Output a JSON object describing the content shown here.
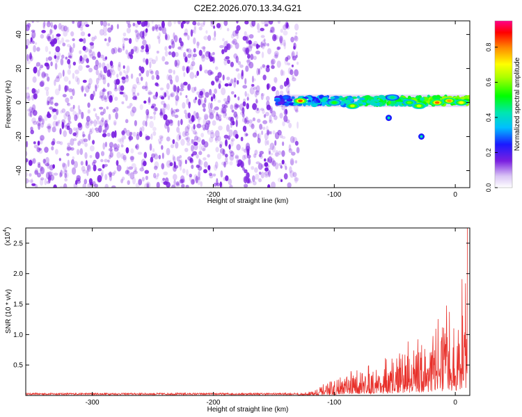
{
  "title": "C2E2.2026.070.13.34.G21",
  "chart_data": [
    {
      "type": "heatmap",
      "xlabel": "Height of straight line (km)",
      "ylabel": "Frequency (Hz)",
      "xlim": [
        -355,
        12
      ],
      "ylim": [
        -50,
        48
      ],
      "xticks": [
        -300,
        -200,
        -100,
        0
      ],
      "yticks": [
        -40,
        -20,
        0,
        20,
        40
      ],
      "colorbar": {
        "label": "Normalized spectral amplitude",
        "range": [
          0.0,
          0.95
        ],
        "ticks": [
          0.0,
          0.2,
          0.4,
          0.6,
          0.8
        ]
      },
      "noise_region": {
        "x_range": [
          -355,
          -130
        ],
        "color": "#7a1fe0"
      },
      "signal_band": {
        "x_range": [
          -148,
          12
        ],
        "center_freq": 1,
        "peaks": [
          {
            "x": -128,
            "y": 1,
            "amp": 0.92
          },
          {
            "x": -100,
            "y": 0,
            "amp": 0.55
          },
          {
            "x": -85,
            "y": -2,
            "amp": 0.7
          },
          {
            "x": -52,
            "y": 3,
            "amp": 0.45
          },
          {
            "x": -38,
            "y": 0,
            "amp": 0.6
          },
          {
            "x": -30,
            "y": -2,
            "amp": 0.7
          },
          {
            "x": -15,
            "y": 0,
            "amp": 0.9
          },
          {
            "x": -5,
            "y": 1,
            "amp": 0.85
          },
          {
            "x": 5,
            "y": 0,
            "amp": 0.75
          }
        ],
        "branch_points": [
          {
            "x": -55,
            "y": -9,
            "amp": 0.2
          },
          {
            "x": -28,
            "y": -20,
            "amp": 0.25
          }
        ]
      }
    },
    {
      "type": "line",
      "xlabel": "Height of straight line (km)",
      "ylabel": "SNR (10 * v/v)",
      "yscale_label": "(x10",
      "yscale_exp": "4",
      "yscale_close": ")",
      "xlim": [
        -355,
        12
      ],
      "ylim": [
        0,
        2.75
      ],
      "xticks": [
        -300,
        -200,
        -100,
        0
      ],
      "yticks": [
        0.5,
        1.0,
        1.5,
        2.0,
        2.5
      ],
      "ytick_labels": [
        "0.5",
        "1.0",
        "1.5",
        "2.0",
        "2.5"
      ],
      "color": "#e8302a",
      "envelope": [
        {
          "x": -355,
          "y": 0.02
        },
        {
          "x": -130,
          "y": 0.03
        },
        {
          "x": -115,
          "y": 0.12
        },
        {
          "x": -100,
          "y": 0.25
        },
        {
          "x": -85,
          "y": 0.4
        },
        {
          "x": -70,
          "y": 0.55
        },
        {
          "x": -55,
          "y": 0.65
        },
        {
          "x": -40,
          "y": 0.9
        },
        {
          "x": -25,
          "y": 1.0
        },
        {
          "x": -15,
          "y": 1.4
        },
        {
          "x": -5,
          "y": 1.35
        },
        {
          "x": 5,
          "y": 1.6
        },
        {
          "x": 10,
          "y": 2.75
        }
      ]
    }
  ]
}
